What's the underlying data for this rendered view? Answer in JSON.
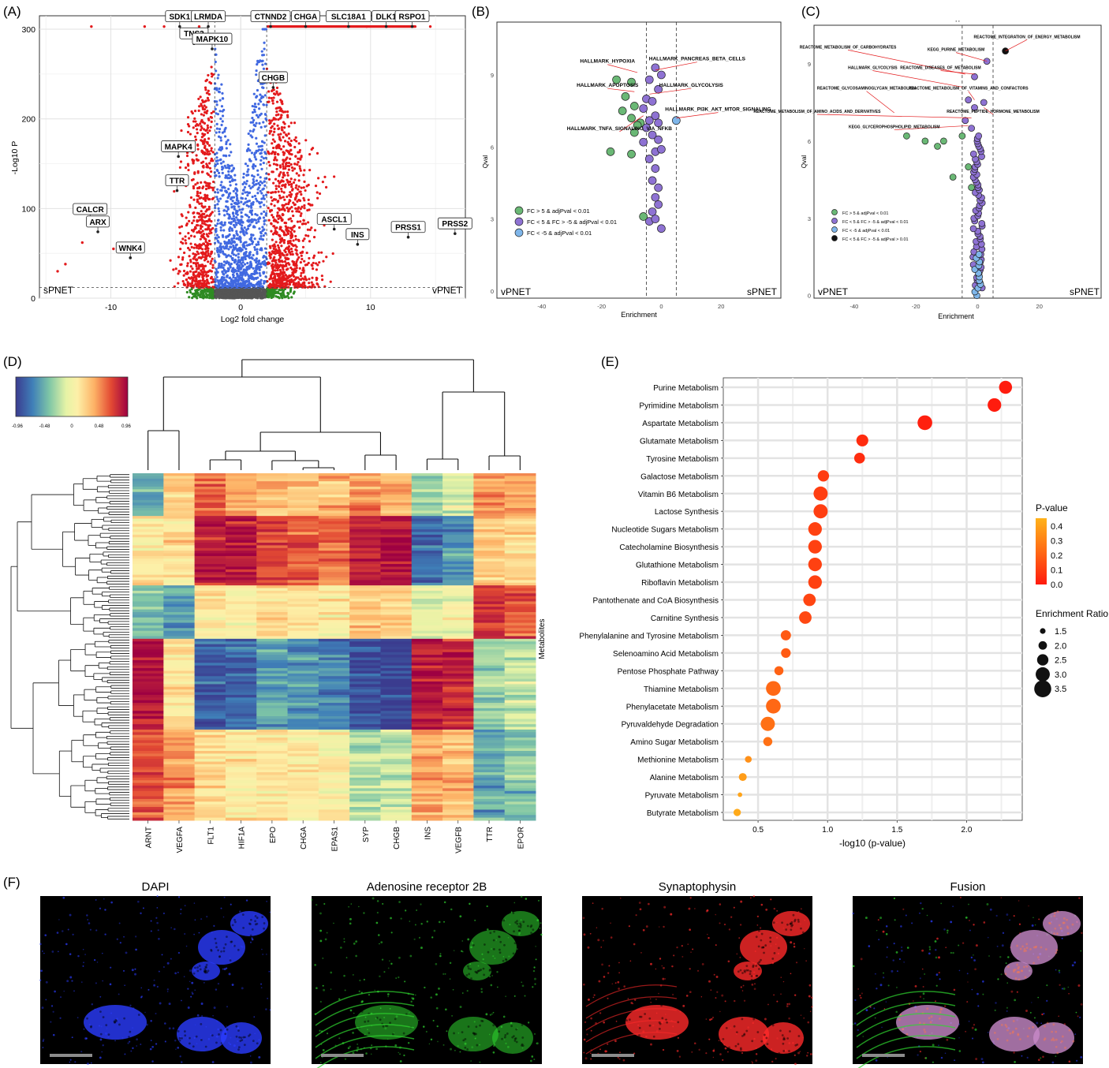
{
  "panels": {
    "A": {
      "letter": "(A)",
      "chart_data": {
        "type": "scatter",
        "title": "",
        "xlabel": "Log2 fold change",
        "ylabel": "-Log10 P",
        "xlim": [
          -15.5,
          17.3
        ],
        "ylim": [
          0,
          315
        ],
        "xticks": [
          -10,
          0,
          10
        ],
        "yticks": [
          0,
          100,
          200,
          300
        ],
        "thresholds": {
          "x": [
            -2,
            2
          ],
          "y": 12
        },
        "corner_left": "sPNET",
        "corner_right": "vPNET",
        "series_colors": {
          "significant": "#e31a1c",
          "p_only": "#4169e1",
          "ns": "#2e8b22",
          "neutral": "#555555"
        },
        "labels": [
          {
            "text": "SDK1",
            "x": -4.7,
            "y": 303
          },
          {
            "text": "LRMDA",
            "x": -2.5,
            "y": 303
          },
          {
            "text": "TNS3",
            "x": -3.6,
            "y": 284
          },
          {
            "text": "MAPK10",
            "x": -2.2,
            "y": 278
          },
          {
            "text": "CTNND2",
            "x": 2.3,
            "y": 303
          },
          {
            "text": "CHGA",
            "x": 5.0,
            "y": 303
          },
          {
            "text": "SLC18A1",
            "x": 8.3,
            "y": 303
          },
          {
            "text": "DLK1",
            "x": 11.2,
            "y": 303
          },
          {
            "text": "RSPO1",
            "x": 13.2,
            "y": 303
          },
          {
            "text": "CHGB",
            "x": 2.5,
            "y": 235
          },
          {
            "text": "MAPK4",
            "x": -4.8,
            "y": 158
          },
          {
            "text": "TTR",
            "x": -4.9,
            "y": 120
          },
          {
            "text": "CALCR",
            "x": -11.6,
            "y": 88
          },
          {
            "text": "ARX",
            "x": -11.0,
            "y": 74
          },
          {
            "text": "WNK4",
            "x": -8.5,
            "y": 45
          },
          {
            "text": "ASCL1",
            "x": 7.2,
            "y": 77
          },
          {
            "text": "INS",
            "x": 9.0,
            "y": 60
          },
          {
            "text": "PRSS1",
            "x": 12.9,
            "y": 68
          },
          {
            "text": "PRSS2",
            "x": 16.5,
            "y": 72
          }
        ]
      }
    },
    "B": {
      "letter": "(B)",
      "chart_data": {
        "type": "scatter",
        "xlabel": "Enrichment",
        "ylabel": "Qval",
        "xlim": [
          -55,
          40
        ],
        "ylim": [
          -0.3,
          11.2
        ],
        "xticks": [
          -40,
          -20,
          0,
          20
        ],
        "yticks": [
          0,
          3,
          6,
          9
        ],
        "vlines": [
          -5,
          5
        ],
        "corner_left": "vPNET",
        "corner_right": "sPNET",
        "legend": [
          {
            "label": "FC > 5 & adjPval < 0.01",
            "color": "#6ab875"
          },
          {
            "label": "FC < 5 & FC > -5 & adjPval < 0.01",
            "color": "#8e72d3"
          },
          {
            "label": "FC < -5 & adjPval < 0.01",
            "color": "#7fb6ea"
          }
        ],
        "annotations": [
          {
            "text": "HALLMARK_HYPOXIA",
            "x": -18,
            "y": 9.5,
            "px": -8,
            "py": 9.1
          },
          {
            "text": "HALLMARK_PANCREAS_BETA_CELLS",
            "x": 12,
            "y": 9.6,
            "px": -2,
            "py": 9.2
          },
          {
            "text": "HALLMARK_APOPTOSIS",
            "x": -18,
            "y": 8.5,
            "px": -9,
            "py": 8.3
          },
          {
            "text": "HALLMARK_GLYCOLYSIS",
            "x": 10,
            "y": 8.5,
            "px": -4,
            "py": 8.2
          },
          {
            "text": "HALLMARK_PI3K_AKT_MTOR_SIGNALING",
            "x": 19,
            "y": 7.5,
            "px": 5,
            "py": 7.2
          },
          {
            "text": "HALLMARK_TNFA_SIGNALING_VIA_NFKB",
            "x": -14,
            "y": 6.7,
            "px": -6,
            "py": 7.3
          }
        ],
        "green_points": [
          [
            -15,
            8.8
          ],
          [
            -10,
            8.7
          ],
          [
            -12,
            8.1
          ],
          [
            -9,
            7.7
          ],
          [
            -13,
            7.5
          ],
          [
            -10,
            7.2
          ],
          [
            -7,
            7.0
          ],
          [
            -8,
            6.9
          ],
          [
            -9,
            6.6
          ],
          [
            -17,
            5.8
          ],
          [
            -10,
            5.7
          ],
          [
            -6,
            3.1
          ]
        ],
        "purple_points": [
          [
            -2,
            9.3
          ],
          [
            0,
            9.0
          ],
          [
            -4,
            8.8
          ],
          [
            -1,
            8.4
          ],
          [
            -5,
            8.0
          ],
          [
            -3,
            7.9
          ],
          [
            -6,
            7.6
          ],
          [
            -2,
            7.3
          ],
          [
            -4,
            7.1
          ],
          [
            -1,
            7.0
          ],
          [
            -5,
            6.8
          ],
          [
            -3,
            6.5
          ],
          [
            -1,
            6.3
          ],
          [
            -6,
            6.2
          ],
          [
            -2,
            5.8
          ],
          [
            -4,
            5.5
          ],
          [
            0,
            5.9
          ],
          [
            -2,
            5.1
          ],
          [
            -3,
            4.6
          ],
          [
            -1,
            4.3
          ],
          [
            -2,
            3.9
          ],
          [
            -1,
            3.6
          ],
          [
            -3,
            3.3
          ],
          [
            -4,
            2.9
          ],
          [
            0,
            2.6
          ],
          [
            -2,
            3.0
          ]
        ],
        "blue_points": [
          [
            5,
            7.1
          ]
        ]
      }
    },
    "C": {
      "letter": "(C)",
      "chart_data": {
        "type": "scatter",
        "xlabel": "Enrichment",
        "ylabel": "Qval",
        "xlim": [
          -53,
          40
        ],
        "ylim": [
          -0.1,
          10.5
        ],
        "xticks": [
          -40,
          -20,
          0,
          20
        ],
        "yticks": [
          0,
          3,
          6,
          9
        ],
        "vlines": [
          -5,
          5
        ],
        "corner_left": "vPNET",
        "corner_right": "sPNET",
        "legend": [
          {
            "label": "FC > 5 & adjPval < 0.01",
            "color": "#6ab875"
          },
          {
            "label": "FC < 5 & FC > -5 & adjPval < 0.01",
            "color": "#8e72d3"
          },
          {
            "label": "FC < -5 & adjPval < 0.01",
            "color": "#7fb6ea"
          },
          {
            "label": "FC < 5 & FC > -5 & adjPval > 0.01",
            "color": "#111111"
          }
        ],
        "annotations": [
          {
            "text": "REACTOME_INTEGRATION_OF_ENERGY_METABOLISM",
            "x": 16,
            "y": 10.0,
            "px": 9,
            "py": 9.5
          },
          {
            "text": "REACTOME_METABOLISM_OF_CARBOHYDRATES",
            "x": -42,
            "y": 9.6,
            "px": -4,
            "py": 8.6
          },
          {
            "text": "KEGG_PURINE_METABOLISM",
            "x": -7,
            "y": 9.5,
            "px": 3,
            "py": 9.1
          },
          {
            "text": "REACTOME_DISEASES_OF_METABOLISM",
            "x": -12,
            "y": 8.8,
            "px": -1,
            "py": 8.6
          },
          {
            "text": "HALLMARK_GLYCOLYSIS",
            "x": -34,
            "y": 8.8,
            "px": -5,
            "py": 8.1
          },
          {
            "text": "REACTOME_GLYCOSAMINOGLYCAN_METABOLISM",
            "x": -36,
            "y": 8.0,
            "px": -27,
            "py": 7.1
          },
          {
            "text": "REACTOME_METABOLISM_OF_VITAMINS_AND_CONFACTORS",
            "x": -3,
            "y": 8.0,
            "px": -1,
            "py": 7.6
          },
          {
            "text": "REACTOME_METABOLISM_OF_AMINO_ACIDS_AND_DERIVATIVES",
            "x": -52,
            "y": 7.1,
            "px": -2,
            "py": 6.9
          },
          {
            "text": "REACTOME_PEPTIDE_HORMONE_METABOLISM",
            "x": 5,
            "y": 7.1,
            "px": 2,
            "py": 7.3
          },
          {
            "text": "KEGG_GLYCEROPHOSPHOLIPID_METABOLISM",
            "x": -27,
            "y": 6.5,
            "px": -3,
            "py": 6.6
          }
        ],
        "green_points": [
          [
            -23,
            6.2
          ],
          [
            -17,
            6.0
          ],
          [
            -13,
            5.8
          ],
          [
            -11,
            6.0
          ],
          [
            -5,
            6.2
          ],
          [
            -8,
            4.6
          ],
          [
            -2,
            4.2
          ],
          [
            -3,
            5.0
          ]
        ],
        "purple_points": [
          [
            3,
            9.1
          ],
          [
            -1,
            8.5
          ],
          [
            -3,
            7.6
          ],
          [
            -1,
            7.3
          ],
          [
            2,
            7.5
          ],
          [
            -4,
            6.8
          ],
          [
            -2,
            6.5
          ]
        ],
        "blue_points": [],
        "black_points": [
          [
            9,
            9.5
          ]
        ],
        "purple_column": {
          "x_center": 0,
          "y_from": 0.3,
          "y_to": 6.2,
          "n": 60
        },
        "blue_column": {
          "x_center": 0,
          "y_from": 0.0,
          "y_to": 1.6,
          "n": 12
        },
        "top_marks": "' '"
      }
    },
    "D": {
      "letter": "(D)",
      "chart_data": {
        "type": "heatmap",
        "colorbar_ticks": [
          "-0.96",
          "-0.48",
          "0",
          "0.48",
          "0.96"
        ],
        "columns": [
          "ARNT",
          "VEGFA",
          "FLT1",
          "HIF1A",
          "EPO",
          "CHGA",
          "EPAS1",
          "SYP",
          "CHGB",
          "INS",
          "VEGFB",
          "TTR",
          "EPOR"
        ],
        "row_axis_label": "Metabolites",
        "blocks": [
          {
            "rows": 16,
            "values": [
              -0.55,
              0.3,
              0.6,
              0.45,
              0.35,
              0.3,
              0.35,
              0.5,
              0.4,
              -0.3,
              -0.1,
              0.55,
              0.45
            ]
          },
          {
            "rows": 26,
            "values": [
              0.15,
              0.2,
              0.85,
              0.9,
              0.7,
              0.65,
              0.6,
              0.9,
              0.95,
              -0.8,
              -0.6,
              0.3,
              0.2
            ]
          },
          {
            "rows": 20,
            "values": [
              -0.4,
              -0.6,
              0.15,
              0.1,
              0.2,
              0.15,
              0.1,
              0.3,
              0.25,
              -0.1,
              0.0,
              0.75,
              0.65
            ]
          },
          {
            "rows": 34,
            "values": [
              0.9,
              0.15,
              -0.85,
              -0.8,
              -0.55,
              -0.6,
              -0.7,
              -0.9,
              -0.95,
              0.9,
              0.85,
              -0.3,
              -0.2
            ]
          },
          {
            "rows": 34,
            "values": [
              0.7,
              0.45,
              0.2,
              0.1,
              0.15,
              0.1,
              0.05,
              -0.25,
              -0.2,
              0.4,
              0.3,
              -0.5,
              -0.4
            ]
          }
        ]
      }
    },
    "E": {
      "letter": "(E)",
      "chart_data": {
        "type": "scatter",
        "xlabel": "-log10 (p-value)",
        "ylabel": "",
        "xlim": [
          0.25,
          2.4
        ],
        "xticks": [
          "0.5",
          "1.0",
          "1.5",
          "2.0"
        ],
        "categories": [
          "Purine Metabolism",
          "Pyrimidine Metabolism",
          "Aspartate Metabolism",
          "Glutamate Metabolism",
          "Tyrosine Metabolism",
          "Galactose Metabolism",
          "Vitamin B6 Metabolism",
          "Lactose Synthesis",
          "Nucleotide Sugars Metabolism",
          "Catecholamine Biosynthesis",
          "Glutathione Metabolism",
          "Riboflavin Metabolism",
          "Pantothenate and CoA Biosynthesis",
          "Carnitine Synthesis",
          "Phenylalanine and Tyrosine Metabolism",
          "Selenoamino Acid Metabolism",
          "Pentose Phosphate Pathway",
          "Thiamine Metabolism",
          "Phenylacetate Metabolism",
          "Pyruvaldehyde Degradation",
          "Amino Sugar Metabolism",
          "Methionine Metabolism",
          "Alanine Metabolism",
          "Pyruvate Metabolism",
          "Butyrate Metabolism"
        ],
        "x": [
          2.28,
          2.2,
          1.7,
          1.25,
          1.23,
          0.97,
          0.95,
          0.95,
          0.91,
          0.91,
          0.91,
          0.91,
          0.87,
          0.84,
          0.7,
          0.7,
          0.65,
          0.61,
          0.61,
          0.57,
          0.57,
          0.43,
          0.39,
          0.37,
          0.35
        ],
        "enrichment_ratio": [
          2.8,
          2.9,
          3.1,
          2.6,
          2.4,
          2.5,
          3.0,
          3.0,
          2.9,
          2.9,
          2.9,
          2.9,
          2.7,
          2.7,
          2.3,
          2.2,
          2.1,
          3.1,
          3.1,
          3.0,
          2.1,
          1.7,
          1.9,
          1.3,
          1.8
        ],
        "pvalue": [
          0.005,
          0.006,
          0.02,
          0.056,
          0.059,
          0.107,
          0.112,
          0.112,
          0.123,
          0.123,
          0.123,
          0.123,
          0.135,
          0.145,
          0.2,
          0.2,
          0.224,
          0.245,
          0.245,
          0.27,
          0.27,
          0.37,
          0.41,
          0.43,
          0.45
        ],
        "legend_p_title": "P-value",
        "legend_p_ticks": [
          "0.4",
          "0.3",
          "0.2",
          "0.1",
          "0.0"
        ],
        "legend_size_title": "Enrichment Ratio",
        "legend_size_ticks": [
          "1.5",
          "2.0",
          "2.5",
          "3.0",
          "3.5"
        ]
      }
    },
    "F": {
      "letter": "(F)",
      "images": [
        {
          "title": "DAPI",
          "channel": "#2a3cff"
        },
        {
          "title": "Adenosine receptor 2B",
          "channel": "#2fd62f"
        },
        {
          "title": "Synaptophysin",
          "channel": "#ff2a2a"
        },
        {
          "title": "Fusion",
          "channel": "#c07ad0"
        }
      ]
    }
  }
}
